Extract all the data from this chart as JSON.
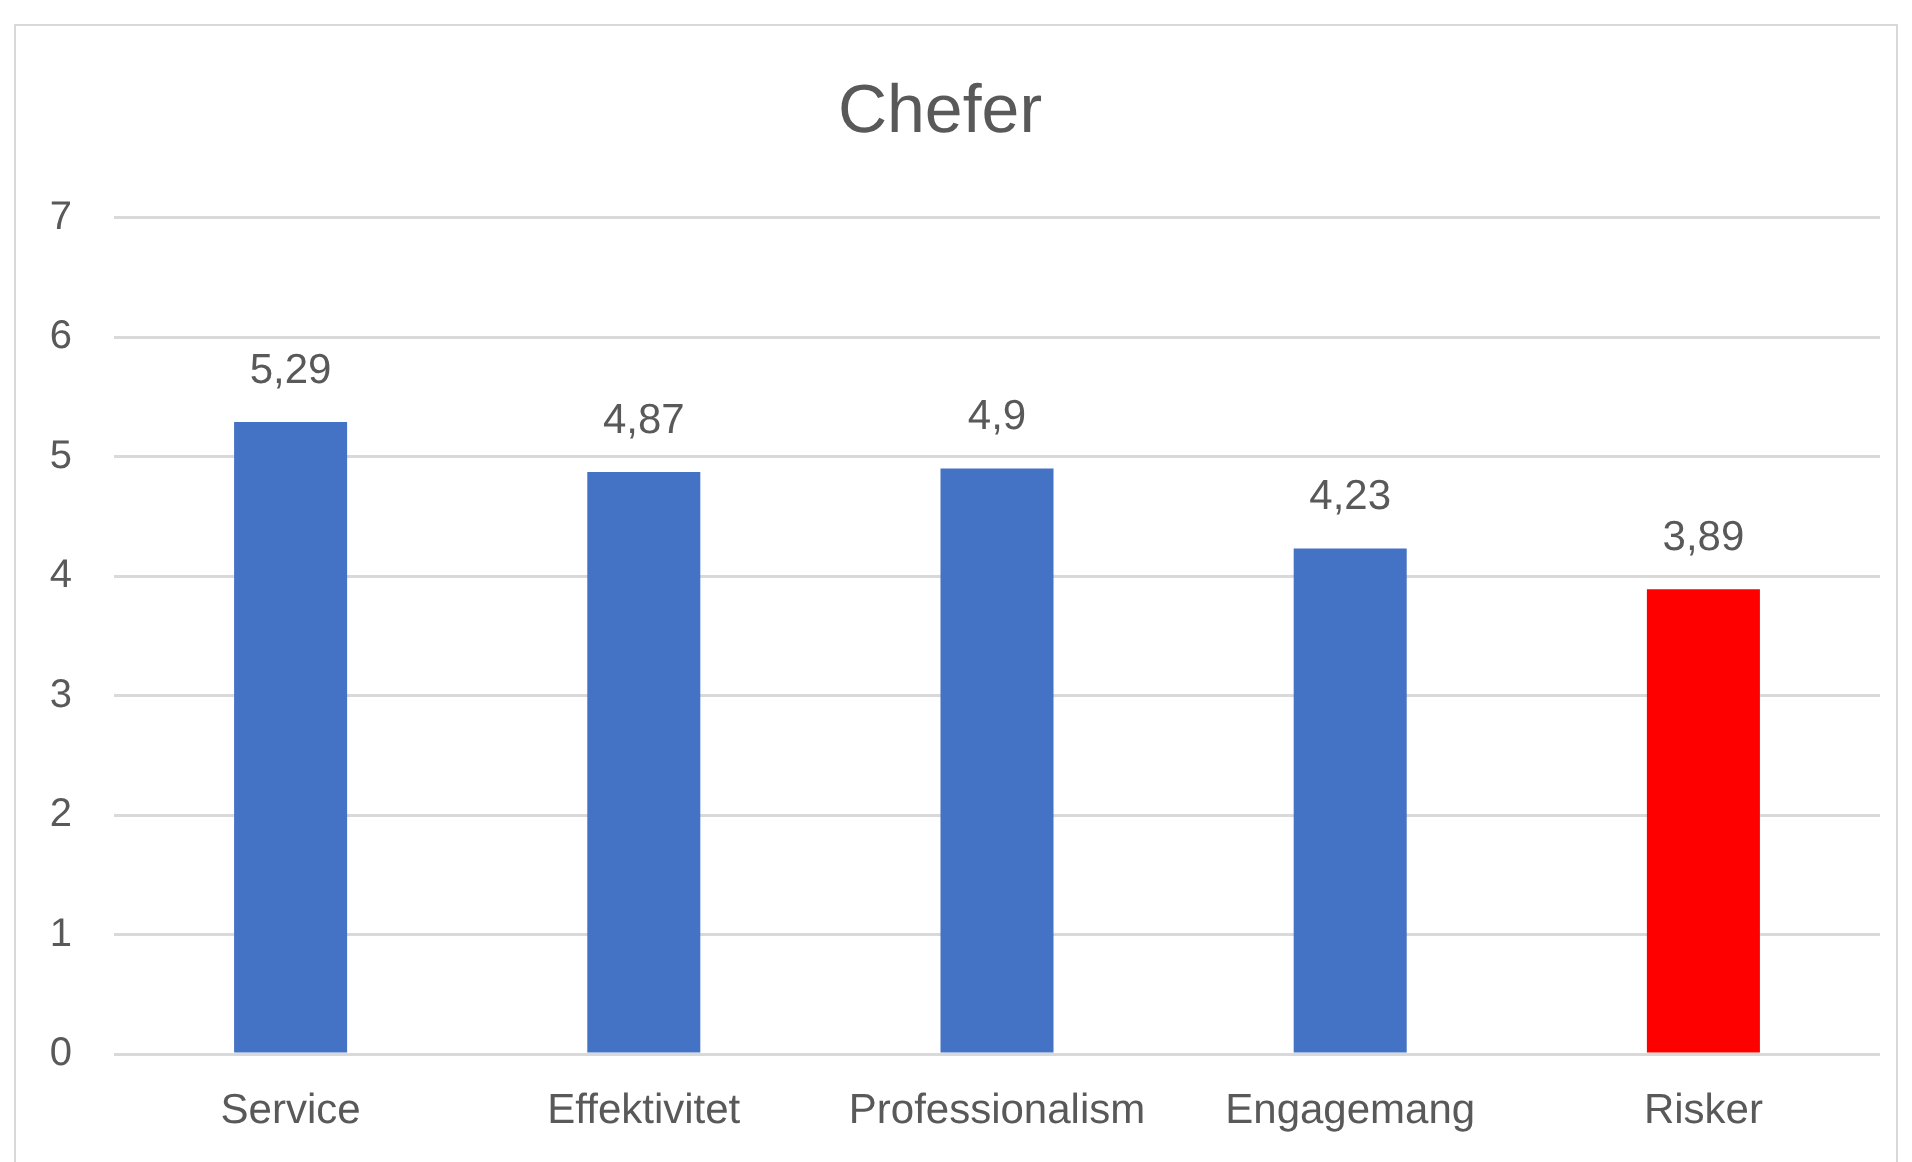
{
  "chart_data": {
    "type": "bar",
    "title": "Chefer",
    "categories": [
      "Service",
      "Effektivitet",
      "Professionalism",
      "Engagemang",
      "Risker"
    ],
    "values": [
      5.29,
      4.87,
      4.9,
      4.23,
      3.89
    ],
    "colors": [
      "#4472c4",
      "#4472c4",
      "#4472c4",
      "#4472c4",
      "#ff0000"
    ],
    "value_labels": [
      "5,29",
      "4,87",
      "4,9",
      "4,23",
      "3,89"
    ],
    "ylim": [
      0,
      7
    ],
    "yticks": [
      0,
      1,
      2,
      3,
      4,
      5,
      6,
      7
    ],
    "grid": "y",
    "legend": false
  }
}
